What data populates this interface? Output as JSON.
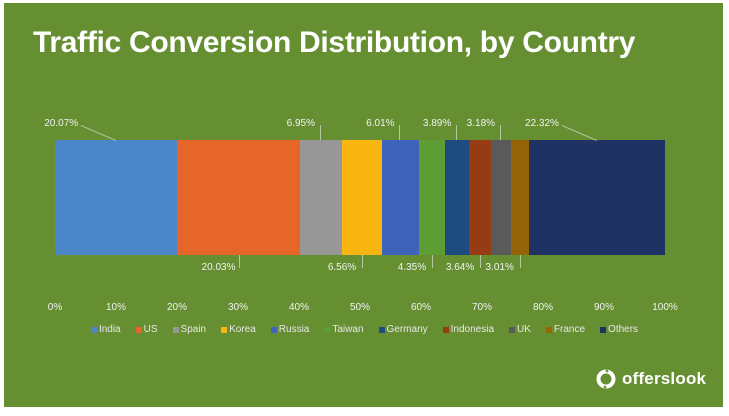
{
  "title": "Traffic Conversion Distribution, by Country",
  "brand": {
    "name": "offerslook",
    "icon": "offerslook-logo-icon"
  },
  "colors": {
    "background": "#658f31",
    "text": "#ffffff"
  },
  "chart_data": {
    "type": "bar",
    "orientation": "horizontal-100%-stacked",
    "title": "Traffic Conversion Distribution, by Country",
    "xlabel": "",
    "ylabel": "",
    "xlim": [
      0,
      100
    ],
    "x_ticks": [
      "0%",
      "10%",
      "20%",
      "30%",
      "40%",
      "50%",
      "60%",
      "70%",
      "80%",
      "90%",
      "100%"
    ],
    "grid": false,
    "legend_position": "bottom",
    "series": [
      {
        "name": "India",
        "values": [
          20.07
        ],
        "label": "20.07%",
        "color": "#4a86c8",
        "label_pos": "top"
      },
      {
        "name": "US",
        "values": [
          20.03
        ],
        "label": "20.03%",
        "color": "#e6662a",
        "label_pos": "bottom"
      },
      {
        "name": "Spain",
        "values": [
          6.95
        ],
        "label": "6.95%",
        "color": "#979797",
        "label_pos": "top"
      },
      {
        "name": "Korea",
        "values": [
          6.56
        ],
        "label": "6.56%",
        "color": "#fbb510",
        "label_pos": "bottom"
      },
      {
        "name": "Russia",
        "values": [
          6.01
        ],
        "label": "6.01%",
        "color": "#3e63bb",
        "label_pos": "top"
      },
      {
        "name": "Taiwan",
        "values": [
          4.35
        ],
        "label": "4.35%",
        "color": "#5d9d33",
        "label_pos": "bottom"
      },
      {
        "name": "Germany",
        "values": [
          3.89
        ],
        "label": "3.89%",
        "color": "#1e4c80",
        "label_pos": "top"
      },
      {
        "name": "Indonesia",
        "values": [
          3.64
        ],
        "label": "3.64%",
        "color": "#963b14",
        "label_pos": "bottom"
      },
      {
        "name": "UK",
        "values": [
          3.18
        ],
        "label": "3.18%",
        "color": "#5a5a5a",
        "label_pos": "top"
      },
      {
        "name": "France",
        "values": [
          3.01
        ],
        "label": "3.01%",
        "color": "#956308",
        "label_pos": "bottom"
      },
      {
        "name": "Others",
        "values": [
          22.32
        ],
        "label": "22.32%",
        "color": "#1f3263",
        "label_pos": "top"
      }
    ]
  }
}
